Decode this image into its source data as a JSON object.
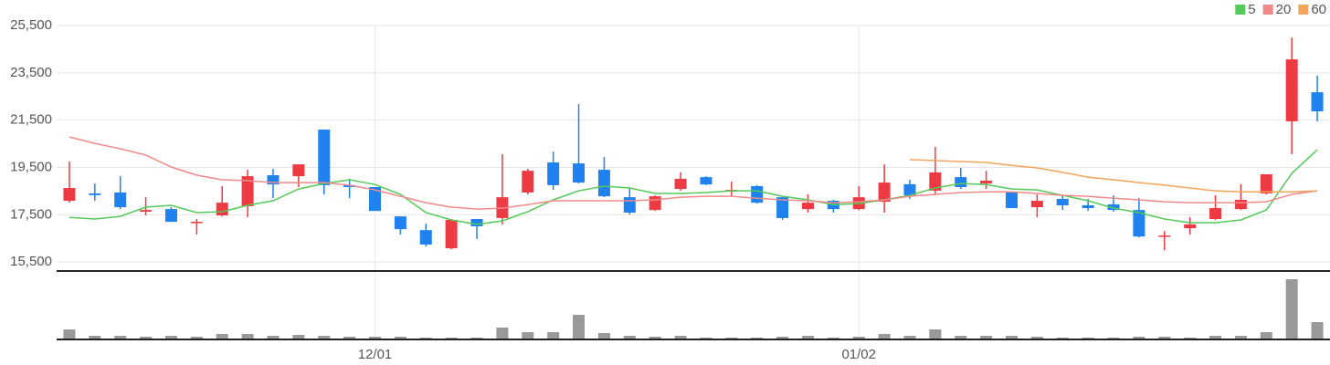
{
  "chart_data": {
    "type": "candlestick",
    "categories": [
      null,
      null,
      null,
      null,
      null,
      null,
      null,
      null,
      null,
      null,
      null,
      null,
      "12/01",
      null,
      null,
      null,
      null,
      null,
      null,
      null,
      null,
      null,
      null,
      null,
      null,
      null,
      null,
      null,
      null,
      null,
      null,
      "01/02",
      null,
      null,
      null,
      null,
      null,
      null,
      null,
      null,
      null,
      null,
      null,
      null,
      null,
      null,
      null,
      null,
      null,
      null
    ],
    "open": [
      18090,
      18400,
      18440,
      17630,
      17740,
      17160,
      17470,
      17860,
      19170,
      19130,
      21100,
      18750,
      18670,
      17430,
      16850,
      16080,
      17320,
      17360,
      18440,
      19710,
      19670,
      19400,
      18240,
      17700,
      18590,
      19090,
      18480,
      18710,
      18240,
      17740,
      18090,
      17740,
      18050,
      18790,
      18520,
      19090,
      18820,
      18480,
      17820,
      18170,
      17900,
      17940,
      17700,
      16580,
      16930,
      17320,
      17740,
      18400,
      21450,
      22680
    ],
    "high": [
      19750,
      18820,
      19130,
      18250,
      17820,
      17320,
      18710,
      19400,
      19440,
      19630,
      21100,
      19020,
      18670,
      17430,
      17120,
      17320,
      17320,
      20060,
      19440,
      20170,
      22180,
      19940,
      18630,
      18320,
      19290,
      19130,
      18900,
      18750,
      18240,
      18360,
      18130,
      18710,
      19630,
      18980,
      20370,
      19480,
      19360,
      18480,
      18360,
      18360,
      18170,
      18320,
      18200,
      16810,
      17390,
      18320,
      18790,
      19210,
      24990,
      23380
    ],
    "low": [
      18010,
      18090,
      17740,
      17470,
      17200,
      16660,
      17430,
      17390,
      18200,
      18670,
      18360,
      18200,
      17660,
      16660,
      16160,
      16040,
      16470,
      17090,
      18360,
      18550,
      18820,
      18240,
      17510,
      17660,
      18510,
      18750,
      18280,
      17970,
      17280,
      17590,
      17590,
      17700,
      17590,
      18170,
      18320,
      18590,
      18590,
      17780,
      17390,
      17700,
      17660,
      17630,
      16540,
      16000,
      16660,
      17280,
      17700,
      18360,
      20060,
      21450
    ],
    "close": [
      18630,
      18330,
      17820,
      17700,
      17200,
      17200,
      18010,
      19130,
      18780,
      19630,
      18750,
      18670,
      17660,
      16890,
      16240,
      17280,
      17010,
      18240,
      19360,
      18750,
      18860,
      18280,
      17590,
      18280,
      19020,
      18780,
      18550,
      18010,
      17360,
      18010,
      17740,
      18240,
      18860,
      18320,
      19290,
      18670,
      18940,
      17780,
      18090,
      17900,
      17780,
      17700,
      16580,
      16620,
      17090,
      17780,
      18130,
      19210,
      24070,
      21870
    ],
    "up_color": "#ee3a42",
    "down_color": "#1f82ef",
    "series": [
      {
        "name": "5",
        "color": "#55c95a",
        "values": [
          17390,
          17320,
          17430,
          17820,
          17900,
          17590,
          17630,
          17900,
          18090,
          18590,
          18820,
          18980,
          18780,
          18360,
          17590,
          17280,
          17090,
          17240,
          17630,
          18130,
          18510,
          18710,
          18630,
          18400,
          18400,
          18440,
          18510,
          18510,
          18280,
          18130,
          17930,
          17970,
          18130,
          18320,
          18630,
          18820,
          18780,
          18590,
          18550,
          18320,
          18090,
          17780,
          17590,
          17320,
          17160,
          17160,
          17280,
          17700,
          19250,
          20250
        ]
      },
      {
        "name": "20",
        "color": "#f08a8a",
        "values": [
          20790,
          20520,
          20290,
          20020,
          19520,
          19170,
          18980,
          18940,
          18860,
          18860,
          18860,
          18750,
          18550,
          18280,
          18010,
          17820,
          17740,
          17780,
          17930,
          18090,
          18090,
          18090,
          18090,
          18130,
          18240,
          18280,
          18280,
          18200,
          18130,
          18090,
          18010,
          18050,
          18130,
          18280,
          18360,
          18440,
          18470,
          18470,
          18400,
          18320,
          18280,
          18200,
          18130,
          18050,
          18010,
          18010,
          18010,
          18050,
          18360,
          18510
        ]
      },
      {
        "name": "60",
        "color": "#f2a45a",
        "values": [
          null,
          null,
          null,
          null,
          null,
          null,
          null,
          null,
          null,
          null,
          null,
          null,
          null,
          null,
          null,
          null,
          null,
          null,
          null,
          null,
          null,
          null,
          null,
          null,
          null,
          null,
          null,
          null,
          null,
          null,
          null,
          null,
          null,
          19830,
          19790,
          19750,
          19710,
          19590,
          19480,
          19290,
          19090,
          18980,
          18860,
          18750,
          18630,
          18510,
          18470,
          18470,
          18470,
          18510
        ]
      }
    ],
    "ylim": [
      15120,
      25500
    ],
    "yticks": [
      {
        "value": 15500,
        "label": "15,500"
      },
      {
        "value": 17500,
        "label": "17,500"
      },
      {
        "value": 19500,
        "label": "19,500"
      },
      {
        "value": 21500,
        "label": "21,500"
      },
      {
        "value": 23500,
        "label": "23,500"
      },
      {
        "value": 25500,
        "label": "25,500"
      }
    ],
    "grid": true,
    "legend": "top-right",
    "volume": [
      11,
      4,
      4,
      3,
      4,
      3,
      6,
      6,
      4,
      5,
      4,
      3,
      3,
      3,
      2,
      2,
      2,
      13,
      8,
      8,
      27,
      7,
      4,
      3,
      4,
      2,
      2,
      2,
      3,
      4,
      2,
      3,
      6,
      4,
      11,
      4,
      4,
      4,
      3,
      2,
      2,
      2,
      3,
      3,
      2,
      4,
      4,
      8,
      66,
      19
    ],
    "volume_color": "#999999",
    "volume_ylim": [
      0,
      75
    ]
  }
}
